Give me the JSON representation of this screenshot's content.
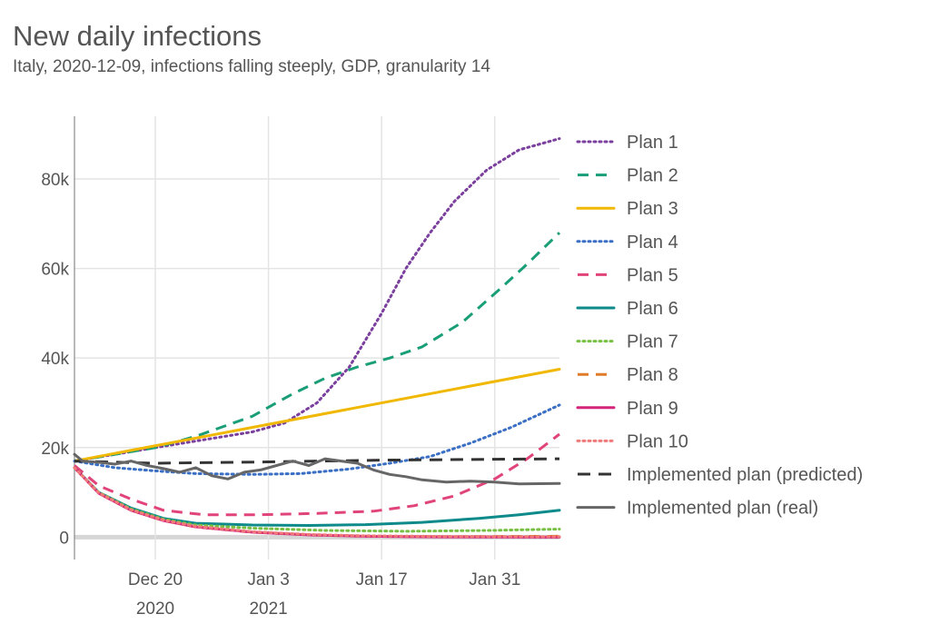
{
  "chart_data": {
    "type": "line",
    "title": "New daily infections",
    "subtitle": "Italy, 2020-12-09, infections falling steeply, GDP, granularity 14",
    "xlabel": "",
    "ylabel": "",
    "x_start": "2020-12-10",
    "x_end": "2021-02-08",
    "ylim": [
      -5000,
      94000
    ],
    "y_ticks": [
      {
        "value": 0,
        "label": "0"
      },
      {
        "value": 20000,
        "label": "20k"
      },
      {
        "value": 40000,
        "label": "40k"
      },
      {
        "value": 60000,
        "label": "60k"
      },
      {
        "value": 80000,
        "label": "80k"
      }
    ],
    "x_ticks": [
      {
        "date": "2020-12-20",
        "label": "Dec 20",
        "sublabel": "2020"
      },
      {
        "date": "2021-01-03",
        "label": "Jan 3",
        "sublabel": "2021"
      },
      {
        "date": "2021-01-17",
        "label": "Jan 17",
        "sublabel": ""
      },
      {
        "date": "2021-01-31",
        "label": "Jan 31",
        "sublabel": ""
      }
    ],
    "grid": true,
    "legend_position": "right",
    "series": [
      {
        "name": "Plan 1",
        "color": "#7b3f9e",
        "dash": "dotted",
        "width": 3,
        "points": [
          [
            "2020-12-10",
            17000
          ],
          [
            "2020-12-20",
            20000
          ],
          [
            "2021-01-01",
            23500
          ],
          [
            "2021-01-05",
            25500
          ],
          [
            "2021-01-09",
            30000
          ],
          [
            "2021-01-13",
            38000
          ],
          [
            "2021-01-17",
            50000
          ],
          [
            "2021-01-20",
            60000
          ],
          [
            "2021-01-23",
            68000
          ],
          [
            "2021-01-26",
            75000
          ],
          [
            "2021-01-30",
            82000
          ],
          [
            "2021-02-03",
            86500
          ],
          [
            "2021-02-08",
            89000
          ]
        ]
      },
      {
        "name": "Plan 2",
        "color": "#1a9e77",
        "dash": "dashed",
        "width": 3,
        "points": [
          [
            "2020-12-10",
            17000
          ],
          [
            "2020-12-20",
            20000
          ],
          [
            "2020-12-25",
            22500
          ],
          [
            "2021-01-01",
            27000
          ],
          [
            "2021-01-06",
            32000
          ],
          [
            "2021-01-10",
            35500
          ],
          [
            "2021-01-14",
            38000
          ],
          [
            "2021-01-18",
            40000
          ],
          [
            "2021-01-22",
            42500
          ],
          [
            "2021-01-27",
            48000
          ],
          [
            "2021-02-01",
            56000
          ],
          [
            "2021-02-04",
            61000
          ],
          [
            "2021-02-08",
            68000
          ]
        ]
      },
      {
        "name": "Plan 3",
        "color": "#f0b800",
        "dash": "solid",
        "width": 3,
        "points": [
          [
            "2020-12-10",
            17000
          ],
          [
            "2021-02-08",
            37500
          ]
        ]
      },
      {
        "name": "Plan 4",
        "color": "#3a6fc4",
        "dash": "dotted",
        "width": 3,
        "points": [
          [
            "2020-12-10",
            17000
          ],
          [
            "2020-12-15",
            15500
          ],
          [
            "2020-12-20",
            14800
          ],
          [
            "2020-12-25",
            14200
          ],
          [
            "2021-01-01",
            14000
          ],
          [
            "2021-01-07",
            14200
          ],
          [
            "2021-01-13",
            15200
          ],
          [
            "2021-01-18",
            16500
          ],
          [
            "2021-01-23",
            18000
          ],
          [
            "2021-01-28",
            21000
          ],
          [
            "2021-02-02",
            24500
          ],
          [
            "2021-02-08",
            29500
          ]
        ]
      },
      {
        "name": "Plan 5",
        "color": "#e0447a",
        "dash": "dashed",
        "width": 3,
        "points": [
          [
            "2020-12-10",
            16000
          ],
          [
            "2020-12-13",
            11500
          ],
          [
            "2020-12-17",
            8500
          ],
          [
            "2020-12-21",
            6000
          ],
          [
            "2020-12-26",
            5000
          ],
          [
            "2021-01-02",
            5000
          ],
          [
            "2021-01-09",
            5300
          ],
          [
            "2021-01-16",
            5800
          ],
          [
            "2021-01-21",
            7000
          ],
          [
            "2021-01-26",
            9200
          ],
          [
            "2021-01-31",
            13000
          ],
          [
            "2021-02-04",
            17500
          ],
          [
            "2021-02-08",
            23000
          ]
        ]
      },
      {
        "name": "Plan 6",
        "color": "#0e8a8a",
        "dash": "solid",
        "width": 3,
        "points": [
          [
            "2020-12-10",
            15500
          ],
          [
            "2020-12-13",
            10000
          ],
          [
            "2020-12-17",
            6500
          ],
          [
            "2020-12-21",
            4200
          ],
          [
            "2020-12-25",
            3100
          ],
          [
            "2021-01-01",
            2700
          ],
          [
            "2021-01-08",
            2600
          ],
          [
            "2021-01-15",
            2800
          ],
          [
            "2021-01-22",
            3300
          ],
          [
            "2021-01-29",
            4200
          ],
          [
            "2021-02-03",
            5000
          ],
          [
            "2021-02-08",
            6000
          ]
        ]
      },
      {
        "name": "Plan 7",
        "color": "#77c043",
        "dash": "dotted",
        "width": 3,
        "points": [
          [
            "2020-12-10",
            15500
          ],
          [
            "2020-12-13",
            10000
          ],
          [
            "2020-12-17",
            6300
          ],
          [
            "2020-12-21",
            4000
          ],
          [
            "2020-12-25",
            2700
          ],
          [
            "2021-01-01",
            2000
          ],
          [
            "2021-01-10",
            1500
          ],
          [
            "2021-01-20",
            1300
          ],
          [
            "2021-01-30",
            1500
          ],
          [
            "2021-02-08",
            1800
          ]
        ]
      },
      {
        "name": "Plan 8",
        "color": "#e07b2a",
        "dash": "dashed",
        "width": 3,
        "points": [
          [
            "2020-12-10",
            15500
          ],
          [
            "2020-12-13",
            9800
          ],
          [
            "2020-12-17",
            6000
          ],
          [
            "2020-12-21",
            3700
          ],
          [
            "2020-12-25",
            2300
          ],
          [
            "2021-01-01",
            1100
          ],
          [
            "2021-01-08",
            500
          ],
          [
            "2021-01-15",
            200
          ],
          [
            "2021-01-25",
            100
          ],
          [
            "2021-02-08",
            200
          ]
        ]
      },
      {
        "name": "Plan 9",
        "color": "#d4257a",
        "dash": "solid",
        "width": 3,
        "points": [
          [
            "2020-12-10",
            15500
          ],
          [
            "2020-12-13",
            9800
          ],
          [
            "2020-12-17",
            6000
          ],
          [
            "2020-12-21",
            3700
          ],
          [
            "2020-12-25",
            2300
          ],
          [
            "2021-01-01",
            1100
          ],
          [
            "2021-01-08",
            500
          ],
          [
            "2021-01-15",
            200
          ],
          [
            "2021-01-25",
            50
          ],
          [
            "2021-02-08",
            0
          ]
        ]
      },
      {
        "name": "Plan 10",
        "color": "#f07a7a",
        "dash": "dotted",
        "width": 3,
        "points": [
          [
            "2020-12-10",
            15500
          ],
          [
            "2020-12-13",
            9900
          ],
          [
            "2020-12-17",
            6100
          ],
          [
            "2020-12-21",
            3800
          ],
          [
            "2020-12-25",
            2400
          ],
          [
            "2021-01-01",
            1200
          ],
          [
            "2021-01-08",
            600
          ],
          [
            "2021-01-15",
            300
          ],
          [
            "2021-01-25",
            150
          ],
          [
            "2021-02-08",
            100
          ]
        ]
      },
      {
        "name": "Implemented plan (predicted)",
        "color": "#333333",
        "dash": "longdash",
        "width": 3,
        "points": [
          [
            "2020-12-10",
            17000
          ],
          [
            "2020-12-20",
            16500
          ],
          [
            "2021-01-03",
            16800
          ],
          [
            "2021-01-17",
            17200
          ],
          [
            "2021-02-08",
            17500
          ]
        ]
      },
      {
        "name": "Implemented plan (real)",
        "color": "#666666",
        "dash": "solid",
        "width": 3,
        "points": [
          [
            "2020-12-10",
            18500
          ],
          [
            "2020-12-11",
            17000
          ],
          [
            "2020-12-13",
            16700
          ],
          [
            "2020-12-15",
            16300
          ],
          [
            "2020-12-17",
            17000
          ],
          [
            "2020-12-19",
            16000
          ],
          [
            "2020-12-21",
            15300
          ],
          [
            "2020-12-23",
            14500
          ],
          [
            "2020-12-25",
            15500
          ],
          [
            "2020-12-27",
            13700
          ],
          [
            "2020-12-29",
            13000
          ],
          [
            "2020-12-31",
            14500
          ],
          [
            "2021-01-02",
            15000
          ],
          [
            "2021-01-04",
            16000
          ],
          [
            "2021-01-06",
            17000
          ],
          [
            "2021-01-08",
            16000
          ],
          [
            "2021-01-10",
            17500
          ],
          [
            "2021-01-12",
            17000
          ],
          [
            "2021-01-14",
            16500
          ],
          [
            "2021-01-16",
            15000
          ],
          [
            "2021-01-18",
            14000
          ],
          [
            "2021-01-20",
            13500
          ],
          [
            "2021-01-22",
            12800
          ],
          [
            "2021-01-25",
            12300
          ],
          [
            "2021-01-28",
            12500
          ],
          [
            "2021-01-31",
            12300
          ],
          [
            "2021-02-03",
            11900
          ],
          [
            "2021-02-08",
            12000
          ]
        ]
      }
    ]
  }
}
